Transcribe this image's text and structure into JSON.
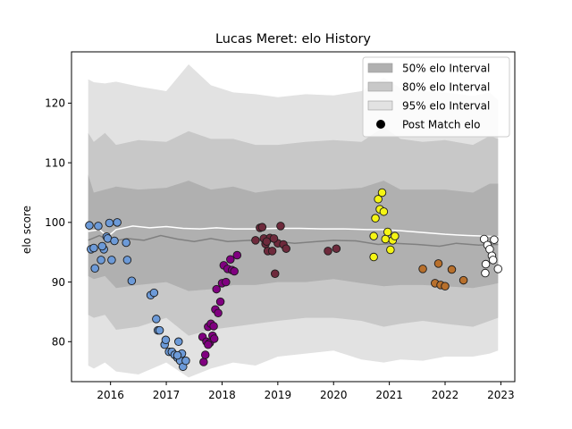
{
  "chart_data": {
    "type": "scatter",
    "title": "Lucas Meret: elo History",
    "xlabel": "",
    "ylabel": "elo score",
    "xlim": [
      2015.3,
      2023.25
    ],
    "ylim": [
      73.3,
      128.6
    ],
    "x_ticks": [
      2016,
      2017,
      2018,
      2019,
      2020,
      2021,
      2022,
      2023
    ],
    "x_tick_labels": [
      "2016",
      "2017",
      "2018",
      "2019",
      "2020",
      "2021",
      "2022",
      "2023"
    ],
    "y_ticks": [
      80,
      90,
      100,
      110,
      120
    ],
    "y_tick_labels": [
      "80",
      "90",
      "100",
      "110",
      "120"
    ],
    "grid": false,
    "legend_position": "top-right",
    "legend": [
      {
        "label": "50% elo Interval",
        "kind": "band",
        "color": "#b0b0b0"
      },
      {
        "label": "80% elo Interval",
        "kind": "band",
        "color": "#c8c8c8"
      },
      {
        "label": "95% elo Interval",
        "kind": "band",
        "color": "#e2e2e2"
      },
      {
        "label": "Post Match elo",
        "kind": "marker",
        "color": "#000000"
      }
    ],
    "band_x": [
      2015.6,
      2015.7,
      2015.9,
      2016.1,
      2016.5,
      2017.0,
      2017.4,
      2017.8,
      2018.2,
      2018.6,
      2019.0,
      2019.5,
      2020.0,
      2020.5,
      2020.9,
      2021.2,
      2021.6,
      2022.0,
      2022.5,
      2022.8,
      2022.95
    ],
    "bands": {
      "p95": {
        "upper": [
          124.0,
          123.5,
          123.3,
          123.6,
          122.8,
          122.0,
          126.5,
          123.0,
          121.8,
          121.5,
          121.0,
          121.5,
          121.3,
          122.0,
          124.3,
          122.5,
          122.0,
          121.8,
          121.2,
          121.8,
          120.5
        ],
        "lower": [
          76.0,
          75.5,
          76.5,
          75.0,
          74.5,
          76.5,
          74.0,
          75.5,
          76.5,
          76.0,
          77.5,
          78.0,
          78.5,
          77.0,
          76.5,
          77.0,
          76.8,
          77.5,
          77.5,
          78.0,
          78.5
        ]
      },
      "p80": {
        "upper": [
          115.0,
          113.5,
          115.0,
          113.0,
          113.8,
          113.5,
          115.3,
          114.0,
          114.0,
          113.0,
          113.0,
          113.5,
          113.8,
          113.5,
          116.0,
          114.0,
          113.5,
          113.8,
          113.0,
          114.5,
          114.0
        ],
        "lower": [
          84.5,
          84.0,
          84.5,
          82.0,
          82.5,
          84.0,
          81.0,
          82.0,
          82.5,
          83.0,
          83.5,
          84.0,
          84.0,
          83.5,
          82.5,
          83.0,
          83.5,
          83.0,
          82.5,
          83.5,
          84.0
        ]
      },
      "p50": {
        "upper": [
          108.0,
          105.0,
          105.5,
          106.0,
          105.5,
          105.8,
          107.0,
          105.5,
          106.0,
          105.0,
          105.5,
          105.5,
          105.5,
          105.8,
          107.0,
          105.5,
          105.5,
          105.5,
          105.0,
          106.5,
          106.5
        ],
        "lower": [
          91.0,
          90.5,
          91.0,
          89.0,
          89.5,
          90.0,
          88.5,
          88.8,
          89.5,
          89.5,
          90.0,
          90.0,
          90.5,
          89.8,
          89.3,
          89.5,
          89.5,
          89.3,
          89.0,
          89.5,
          89.8
        ]
      }
    },
    "median_line": {
      "color": "#808080",
      "x": [
        2015.6,
        2015.8,
        2016.0,
        2016.3,
        2016.6,
        2016.9,
        2017.2,
        2017.5,
        2017.8,
        2018.1,
        2018.5,
        2018.9,
        2019.3,
        2019.7,
        2020.0,
        2020.4,
        2020.8,
        2021.1,
        2021.5,
        2021.9,
        2022.2,
        2022.6,
        2022.95
      ],
      "y": [
        97.0,
        97.8,
        96.8,
        97.3,
        97.0,
        97.8,
        97.2,
        96.8,
        97.3,
        96.8,
        97.0,
        96.9,
        96.5,
        96.8,
        97.0,
        96.9,
        96.3,
        96.5,
        96.3,
        96.0,
        96.5,
        96.2,
        96.3
      ]
    },
    "mean_line": {
      "color": "#ffffff",
      "x": [
        2015.6,
        2015.8,
        2015.95,
        2016.1,
        2016.4,
        2016.7,
        2017.0,
        2017.3,
        2017.6,
        2017.9,
        2018.2,
        2018.6,
        2019.0,
        2019.4,
        2019.8,
        2020.2,
        2020.6,
        2020.9,
        2021.2,
        2021.6,
        2022.0,
        2022.4,
        2022.7,
        2022.95
      ],
      "y": [
        98.5,
        98.8,
        97.6,
        98.8,
        99.4,
        99.1,
        99.3,
        99.0,
        98.9,
        99.1,
        98.9,
        98.9,
        99.0,
        99.0,
        98.9,
        98.9,
        98.8,
        98.8,
        98.6,
        98.3,
        98.0,
        97.8,
        97.7,
        97.6
      ]
    },
    "series": [
      {
        "color": "#6c9ad8",
        "x": [
          2015.62,
          2015.65,
          2015.7,
          2015.72,
          2015.78,
          2015.83,
          2015.88,
          2015.93,
          2015.98,
          2016.02,
          2016.12,
          2016.28,
          2016.3,
          2016.38,
          2016.72,
          2016.78,
          2016.82,
          2016.85,
          2016.88,
          2016.97,
          2016.99,
          2017.05,
          2017.1,
          2017.15,
          2017.2,
          2017.25,
          2017.3,
          2017.35,
          2017.22,
          2017.28,
          2017.2,
          2015.85,
          2015.95,
          2016.07
        ],
        "y": [
          99.5,
          95.5,
          95.7,
          92.3,
          99.4,
          93.7,
          95.5,
          97.6,
          99.9,
          93.7,
          100.0,
          96.6,
          93.7,
          90.2,
          87.8,
          88.2,
          83.8,
          81.9,
          81.9,
          79.5,
          80.3,
          78.3,
          78.3,
          77.8,
          77.3,
          76.8,
          75.8,
          76.8,
          80.0,
          78.0,
          77.7,
          96.0,
          97.3,
          96.9
        ]
      },
      {
        "color": "#800080",
        "x": [
          2017.65,
          2017.67,
          2017.7,
          2017.72,
          2017.75,
          2017.78,
          2017.8,
          2017.83,
          2017.86,
          2017.88,
          2017.9,
          2017.93,
          2017.97,
          2018.0,
          2018.03,
          2018.07,
          2018.1,
          2018.15,
          2018.18,
          2018.22,
          2018.27,
          2017.85,
          2017.75
        ],
        "y": [
          80.8,
          76.6,
          77.8,
          80.0,
          82.5,
          79.8,
          83.0,
          81.0,
          80.5,
          85.4,
          88.8,
          84.8,
          86.7,
          89.8,
          92.8,
          90.0,
          92.2,
          93.8,
          92.0,
          91.8,
          94.5,
          82.6,
          79.5
        ]
      },
      {
        "color": "#6e2a3c",
        "x": [
          2018.6,
          2018.68,
          2018.72,
          2018.75,
          2018.78,
          2018.82,
          2018.86,
          2018.9,
          2018.95,
          2019.0,
          2019.05,
          2019.1,
          2019.15,
          2019.9,
          2020.05,
          2018.8,
          2018.93
        ],
        "y": [
          97.0,
          99.1,
          99.2,
          97.3,
          96.4,
          95.2,
          97.4,
          95.2,
          91.4,
          96.5,
          99.4,
          96.3,
          95.6,
          95.2,
          95.6,
          96.8,
          97.3
        ]
      },
      {
        "color": "#f5f514",
        "x": [
          2020.72,
          2020.75,
          2020.8,
          2020.83,
          2020.87,
          2020.9,
          2020.93,
          2020.97,
          2021.02,
          2021.06,
          2021.1,
          2020.72
        ],
        "y": [
          97.7,
          100.7,
          103.9,
          102.2,
          105.0,
          101.8,
          97.2,
          98.4,
          95.4,
          97.0,
          97.7,
          94.2
        ]
      },
      {
        "color": "#b8702c",
        "x": [
          2021.6,
          2021.82,
          2021.88,
          2021.92,
          2022.0,
          2022.12,
          2022.33
        ],
        "y": [
          92.2,
          89.8,
          93.1,
          89.5,
          89.3,
          92.1,
          90.3
        ]
      },
      {
        "color": "#ffffff",
        "x": [
          2022.7,
          2022.73,
          2022.76,
          2022.8,
          2022.84,
          2022.86,
          2022.88,
          2022.95,
          2022.72
        ],
        "y": [
          97.2,
          93.0,
          96.2,
          95.5,
          94.4,
          93.7,
          97.1,
          92.2,
          91.5
        ]
      }
    ]
  }
}
